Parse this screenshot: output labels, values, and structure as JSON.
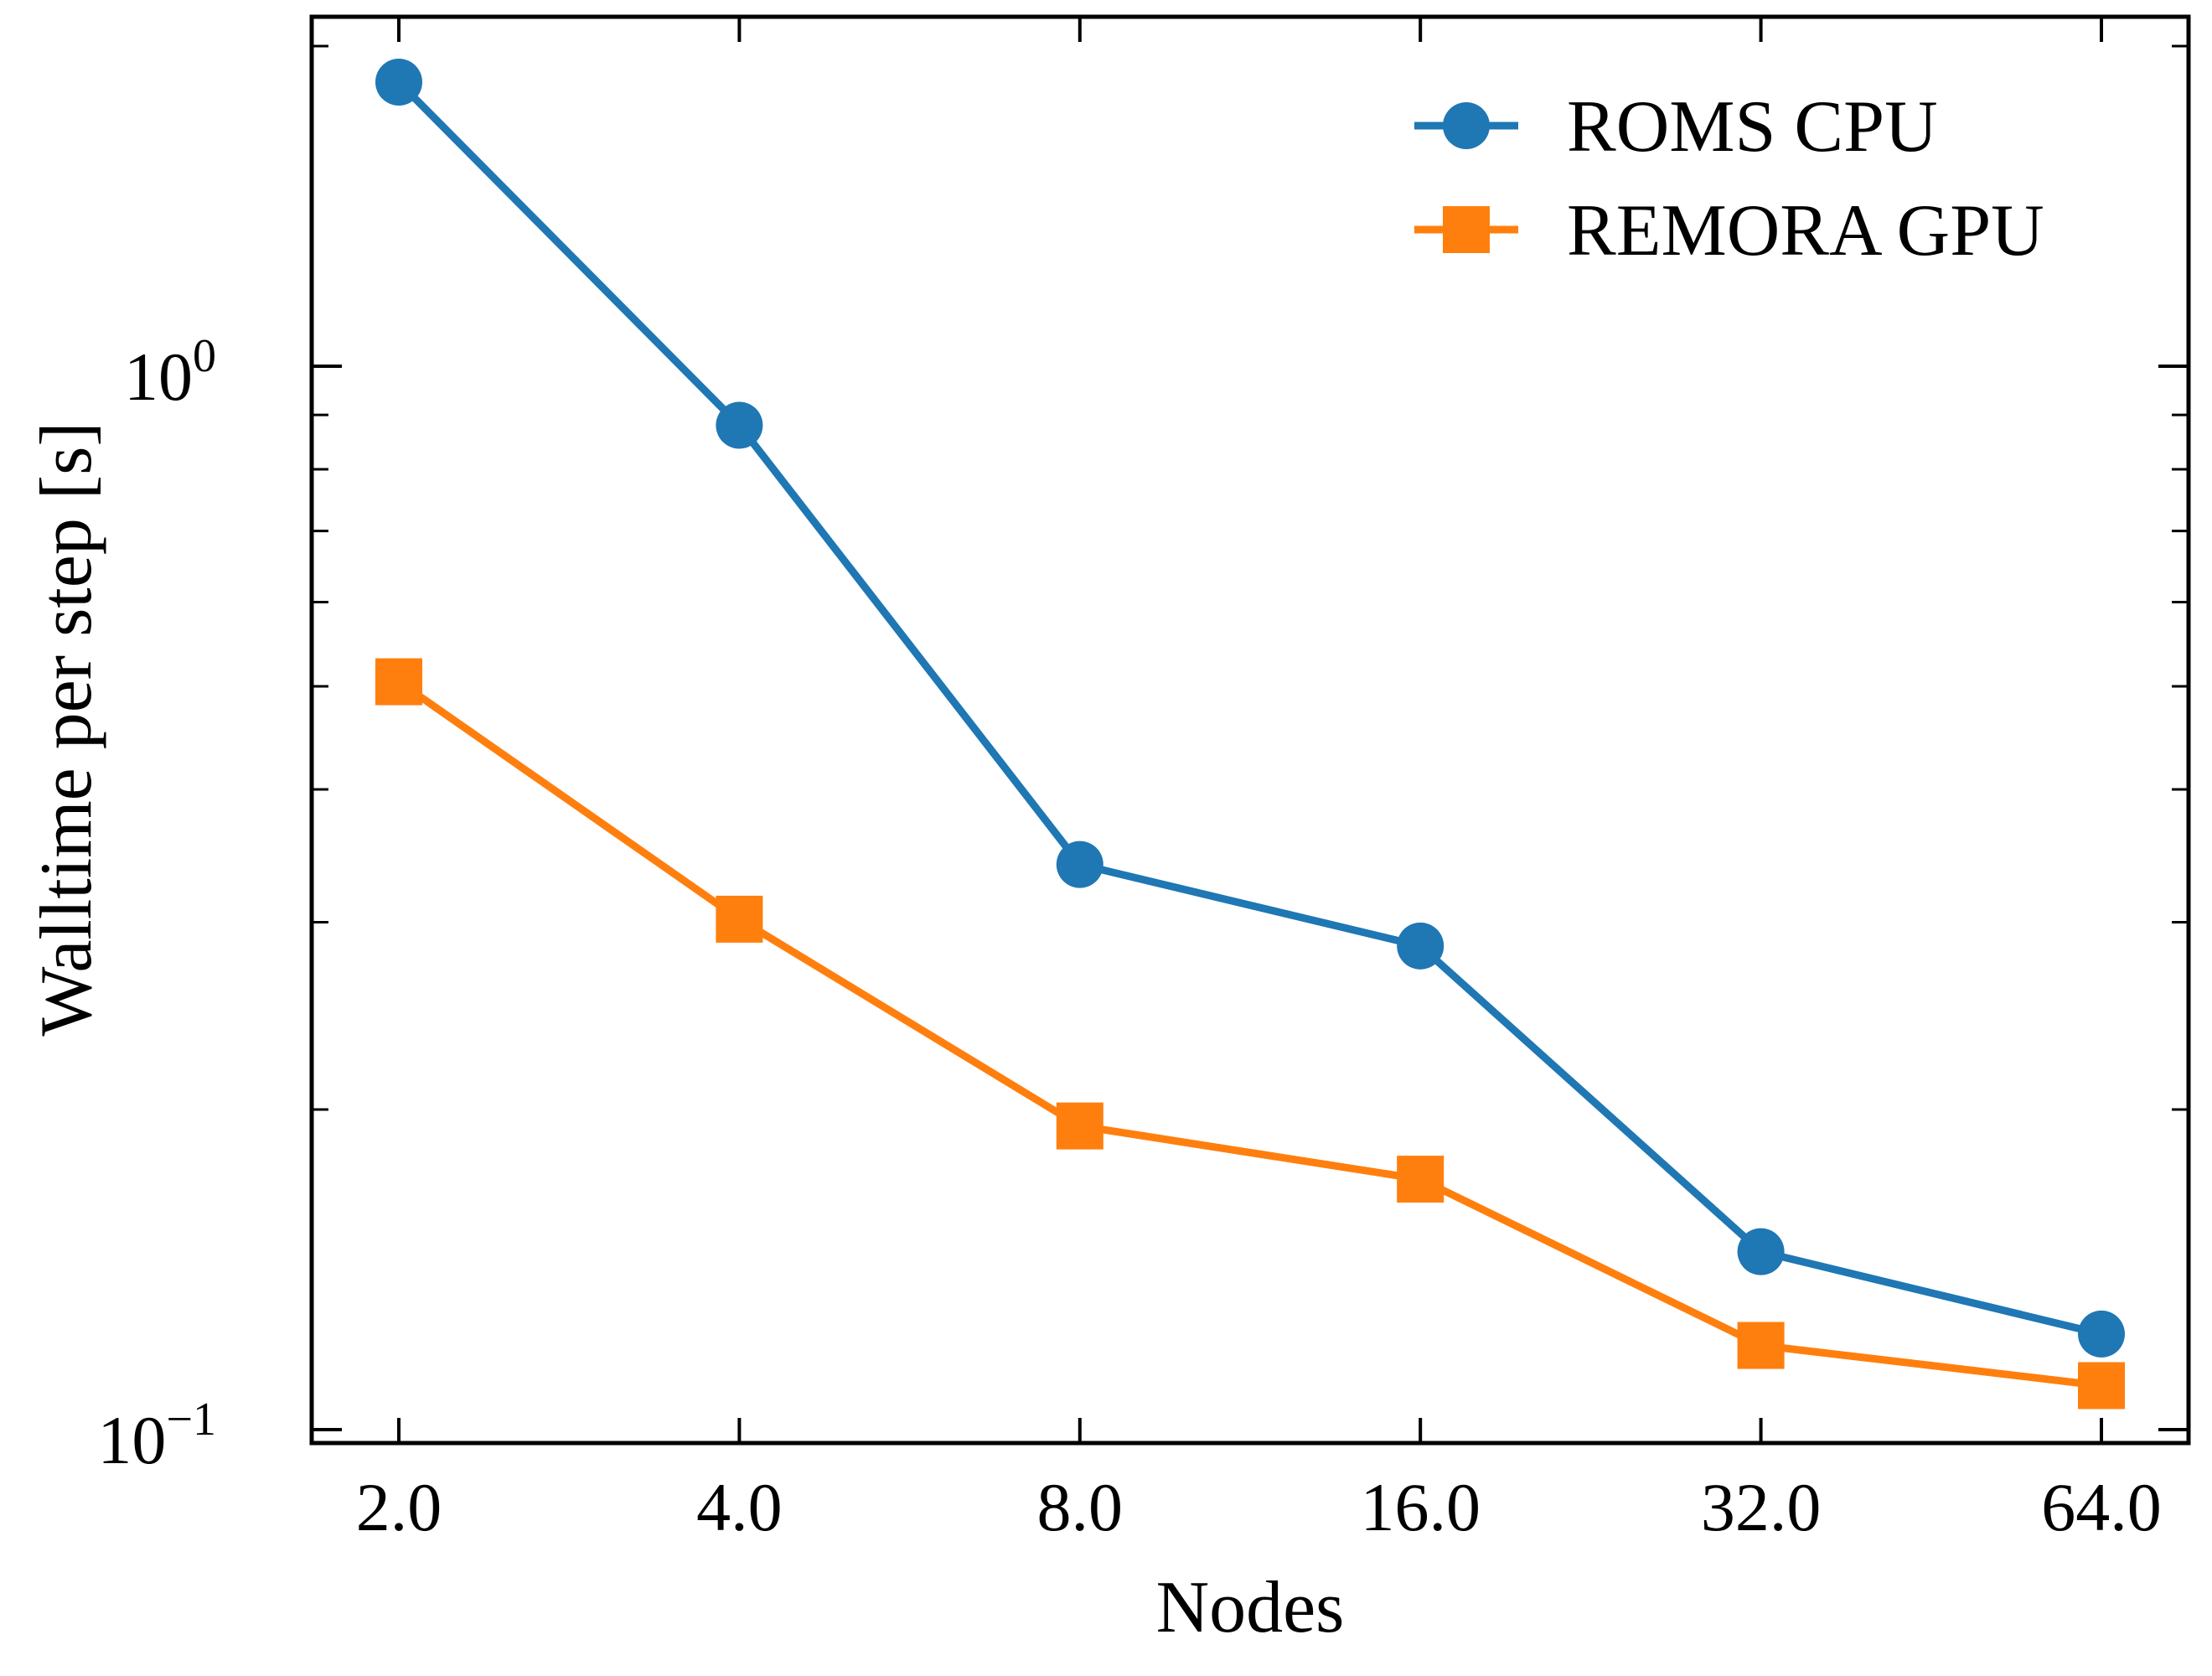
{
  "chart_data": {
    "type": "line",
    "xlabel": "Nodes",
    "ylabel": "Walltime per step [s]",
    "x": [
      2,
      4,
      8,
      16,
      32,
      64
    ],
    "x_scale": "log2",
    "x_tick_labels": [
      "2.0",
      "4.0",
      "8.0",
      "16.0",
      "32.0",
      "64.0"
    ],
    "y_scale": "log10",
    "ylim": [
      0.1,
      1.85
    ],
    "y_major_ticks": [
      {
        "value": 1,
        "base": "10",
        "exp": "0"
      },
      {
        "value": 0.1,
        "base": "10",
        "exp": "−1"
      }
    ],
    "grid": false,
    "legend_position": "top-right",
    "series": [
      {
        "name": "ROMS CPU",
        "color": "#1f77b4",
        "marker": "circle",
        "values": [
          1.85,
          0.88,
          0.34,
          0.285,
          0.147,
          0.123
        ]
      },
      {
        "name": "REMORA GPU",
        "color": "#ff7f0e",
        "marker": "square",
        "values": [
          0.505,
          0.302,
          0.193,
          0.172,
          0.12,
          0.11
        ]
      }
    ]
  }
}
